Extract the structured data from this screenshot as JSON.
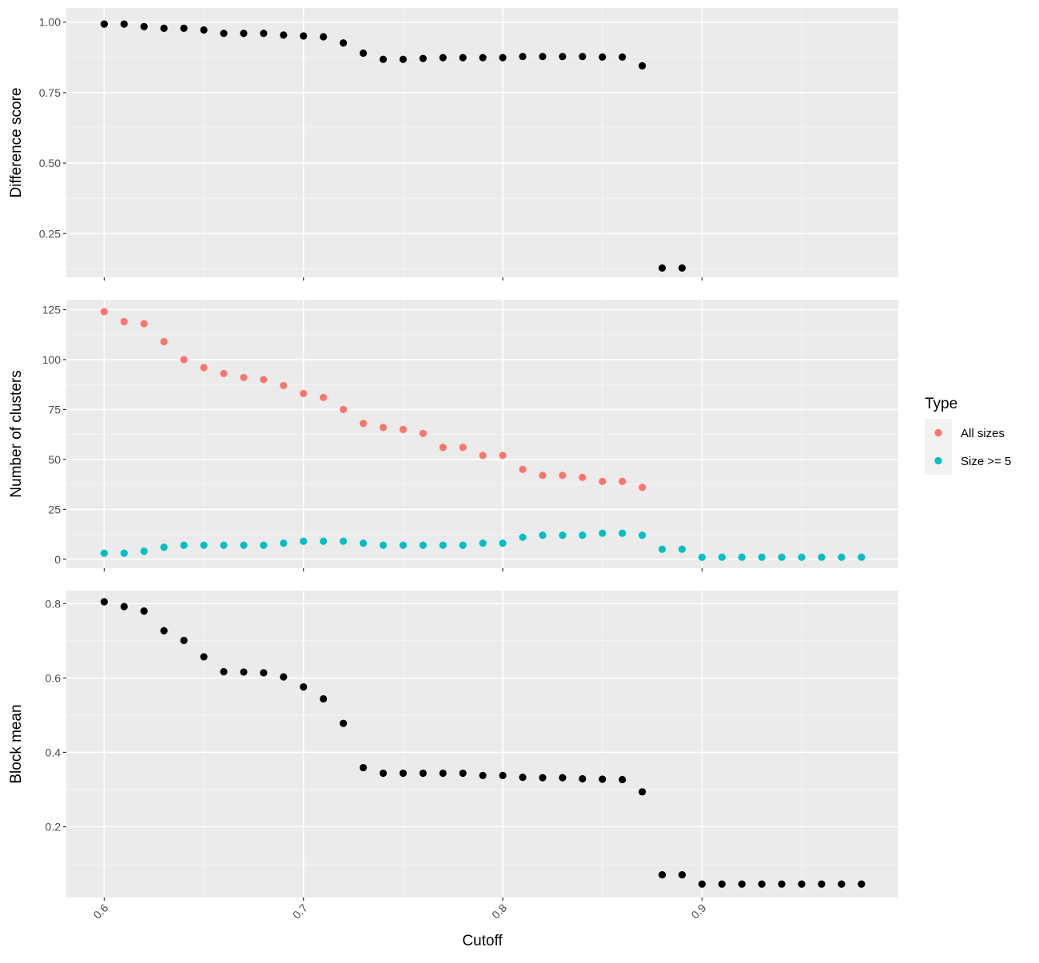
{
  "chart_data": {
    "type": "scatter",
    "layout": "faceted, three vertically stacked panels sharing the x axis",
    "x_axis": {
      "label": "Cutoff",
      "ticks": [
        0.6,
        0.7,
        0.8,
        0.9
      ],
      "tick_labels": [
        "0.6",
        "0.7",
        "0.8",
        "0.9"
      ],
      "range": [
        0.581,
        0.9985
      ],
      "tick_label_rotation": "-45"
    },
    "grid": "on",
    "theme": "grey panel background with white gridlines",
    "panels": [
      {
        "ylabel": "Difference score",
        "y_ticks": [
          0.25,
          0.5,
          0.75,
          1.0
        ],
        "y_tick_labels": [
          "0.25",
          "0.50",
          "0.75",
          "1.00"
        ],
        "ylim": [
          0.095,
          1.05
        ],
        "series": [
          {
            "color": "#000000",
            "points": [
              [
                0.6,
                0.993
              ],
              [
                0.61,
                0.993
              ],
              [
                0.62,
                0.984
              ],
              [
                0.63,
                0.978
              ],
              [
                0.64,
                0.978
              ],
              [
                0.65,
                0.972
              ],
              [
                0.66,
                0.96
              ],
              [
                0.67,
                0.96
              ],
              [
                0.68,
                0.96
              ],
              [
                0.69,
                0.954
              ],
              [
                0.7,
                0.951
              ],
              [
                0.71,
                0.948
              ],
              [
                0.72,
                0.926
              ],
              [
                0.73,
                0.89
              ],
              [
                0.74,
                0.868
              ],
              [
                0.75,
                0.868
              ],
              [
                0.76,
                0.871
              ],
              [
                0.77,
                0.874
              ],
              [
                0.78,
                0.874
              ],
              [
                0.79,
                0.874
              ],
              [
                0.8,
                0.874
              ],
              [
                0.81,
                0.878
              ],
              [
                0.82,
                0.878
              ],
              [
                0.83,
                0.878
              ],
              [
                0.84,
                0.878
              ],
              [
                0.85,
                0.876
              ],
              [
                0.86,
                0.876
              ],
              [
                0.87,
                0.845
              ],
              [
                0.88,
                0.128
              ],
              [
                0.89,
                0.128
              ]
            ]
          }
        ]
      },
      {
        "ylabel": "Number of clusters",
        "y_ticks": [
          0,
          25,
          50,
          75,
          100,
          125
        ],
        "y_tick_labels": [
          "0",
          "25",
          "50",
          "75",
          "100",
          "125"
        ],
        "ylim": [
          -4.5,
          130
        ],
        "series": [
          {
            "name": "All sizes",
            "color": "#F8766D",
            "points": [
              [
                0.6,
                124
              ],
              [
                0.61,
                119
              ],
              [
                0.62,
                118
              ],
              [
                0.63,
                109
              ],
              [
                0.64,
                100
              ],
              [
                0.65,
                96
              ],
              [
                0.66,
                93
              ],
              [
                0.67,
                91
              ],
              [
                0.68,
                90
              ],
              [
                0.69,
                87
              ],
              [
                0.7,
                83
              ],
              [
                0.71,
                81
              ],
              [
                0.72,
                75
              ],
              [
                0.73,
                68
              ],
              [
                0.74,
                66
              ],
              [
                0.75,
                65
              ],
              [
                0.76,
                63
              ],
              [
                0.77,
                56
              ],
              [
                0.78,
                56
              ],
              [
                0.79,
                52
              ],
              [
                0.8,
                52
              ],
              [
                0.81,
                45
              ],
              [
                0.82,
                42
              ],
              [
                0.83,
                42
              ],
              [
                0.84,
                41
              ],
              [
                0.85,
                39
              ],
              [
                0.86,
                39
              ],
              [
                0.87,
                36
              ]
            ]
          },
          {
            "name": "Size >= 5",
            "color": "#00BFC4",
            "points": [
              [
                0.6,
                3
              ],
              [
                0.61,
                3
              ],
              [
                0.62,
                4
              ],
              [
                0.63,
                6
              ],
              [
                0.64,
                7
              ],
              [
                0.65,
                7
              ],
              [
                0.66,
                7
              ],
              [
                0.67,
                7
              ],
              [
                0.68,
                7
              ],
              [
                0.69,
                8
              ],
              [
                0.7,
                9
              ],
              [
                0.71,
                9
              ],
              [
                0.72,
                9
              ],
              [
                0.73,
                8
              ],
              [
                0.74,
                7
              ],
              [
                0.75,
                7
              ],
              [
                0.76,
                7
              ],
              [
                0.77,
                7
              ],
              [
                0.78,
                7
              ],
              [
                0.79,
                8
              ],
              [
                0.8,
                8
              ],
              [
                0.81,
                11
              ],
              [
                0.82,
                12
              ],
              [
                0.83,
                12
              ],
              [
                0.84,
                12
              ],
              [
                0.85,
                13
              ],
              [
                0.86,
                13
              ],
              [
                0.87,
                12
              ],
              [
                0.88,
                5
              ],
              [
                0.89,
                5
              ],
              [
                0.9,
                1
              ],
              [
                0.91,
                1
              ],
              [
                0.92,
                1
              ],
              [
                0.93,
                1
              ],
              [
                0.94,
                1
              ],
              [
                0.95,
                1
              ],
              [
                0.96,
                1
              ],
              [
                0.97,
                1
              ],
              [
                0.98,
                1
              ]
            ]
          }
        ]
      },
      {
        "ylabel": "Block mean",
        "y_ticks": [
          0.2,
          0.4,
          0.6,
          0.8
        ],
        "y_tick_labels": [
          "0.2",
          "0.4",
          "0.6",
          "0.8"
        ],
        "ylim": [
          0.01,
          0.835
        ],
        "series": [
          {
            "color": "#000000",
            "points": [
              [
                0.6,
                0.805
              ],
              [
                0.61,
                0.792
              ],
              [
                0.62,
                0.78
              ],
              [
                0.63,
                0.727
              ],
              [
                0.64,
                0.701
              ],
              [
                0.65,
                0.657
              ],
              [
                0.66,
                0.617
              ],
              [
                0.67,
                0.616
              ],
              [
                0.68,
                0.614
              ],
              [
                0.69,
                0.603
              ],
              [
                0.7,
                0.576
              ],
              [
                0.71,
                0.544
              ],
              [
                0.72,
                0.478
              ],
              [
                0.73,
                0.359
              ],
              [
                0.74,
                0.344
              ],
              [
                0.75,
                0.344
              ],
              [
                0.76,
                0.344
              ],
              [
                0.77,
                0.344
              ],
              [
                0.78,
                0.344
              ],
              [
                0.79,
                0.338
              ],
              [
                0.8,
                0.338
              ],
              [
                0.81,
                0.333
              ],
              [
                0.82,
                0.332
              ],
              [
                0.83,
                0.332
              ],
              [
                0.84,
                0.329
              ],
              [
                0.85,
                0.328
              ],
              [
                0.86,
                0.327
              ],
              [
                0.87,
                0.294
              ],
              [
                0.88,
                0.071
              ],
              [
                0.89,
                0.071
              ],
              [
                0.9,
                0.046
              ],
              [
                0.91,
                0.046
              ],
              [
                0.92,
                0.046
              ],
              [
                0.93,
                0.046
              ],
              [
                0.94,
                0.046
              ],
              [
                0.95,
                0.046
              ],
              [
                0.96,
                0.046
              ],
              [
                0.97,
                0.046
              ],
              [
                0.98,
                0.046
              ]
            ]
          }
        ]
      }
    ],
    "legend": {
      "title": "Type",
      "position": "right",
      "items": [
        {
          "label": "All sizes",
          "color": "#F8766D"
        },
        {
          "label": "Size >= 5",
          "color": "#00BFC4"
        }
      ]
    }
  }
}
